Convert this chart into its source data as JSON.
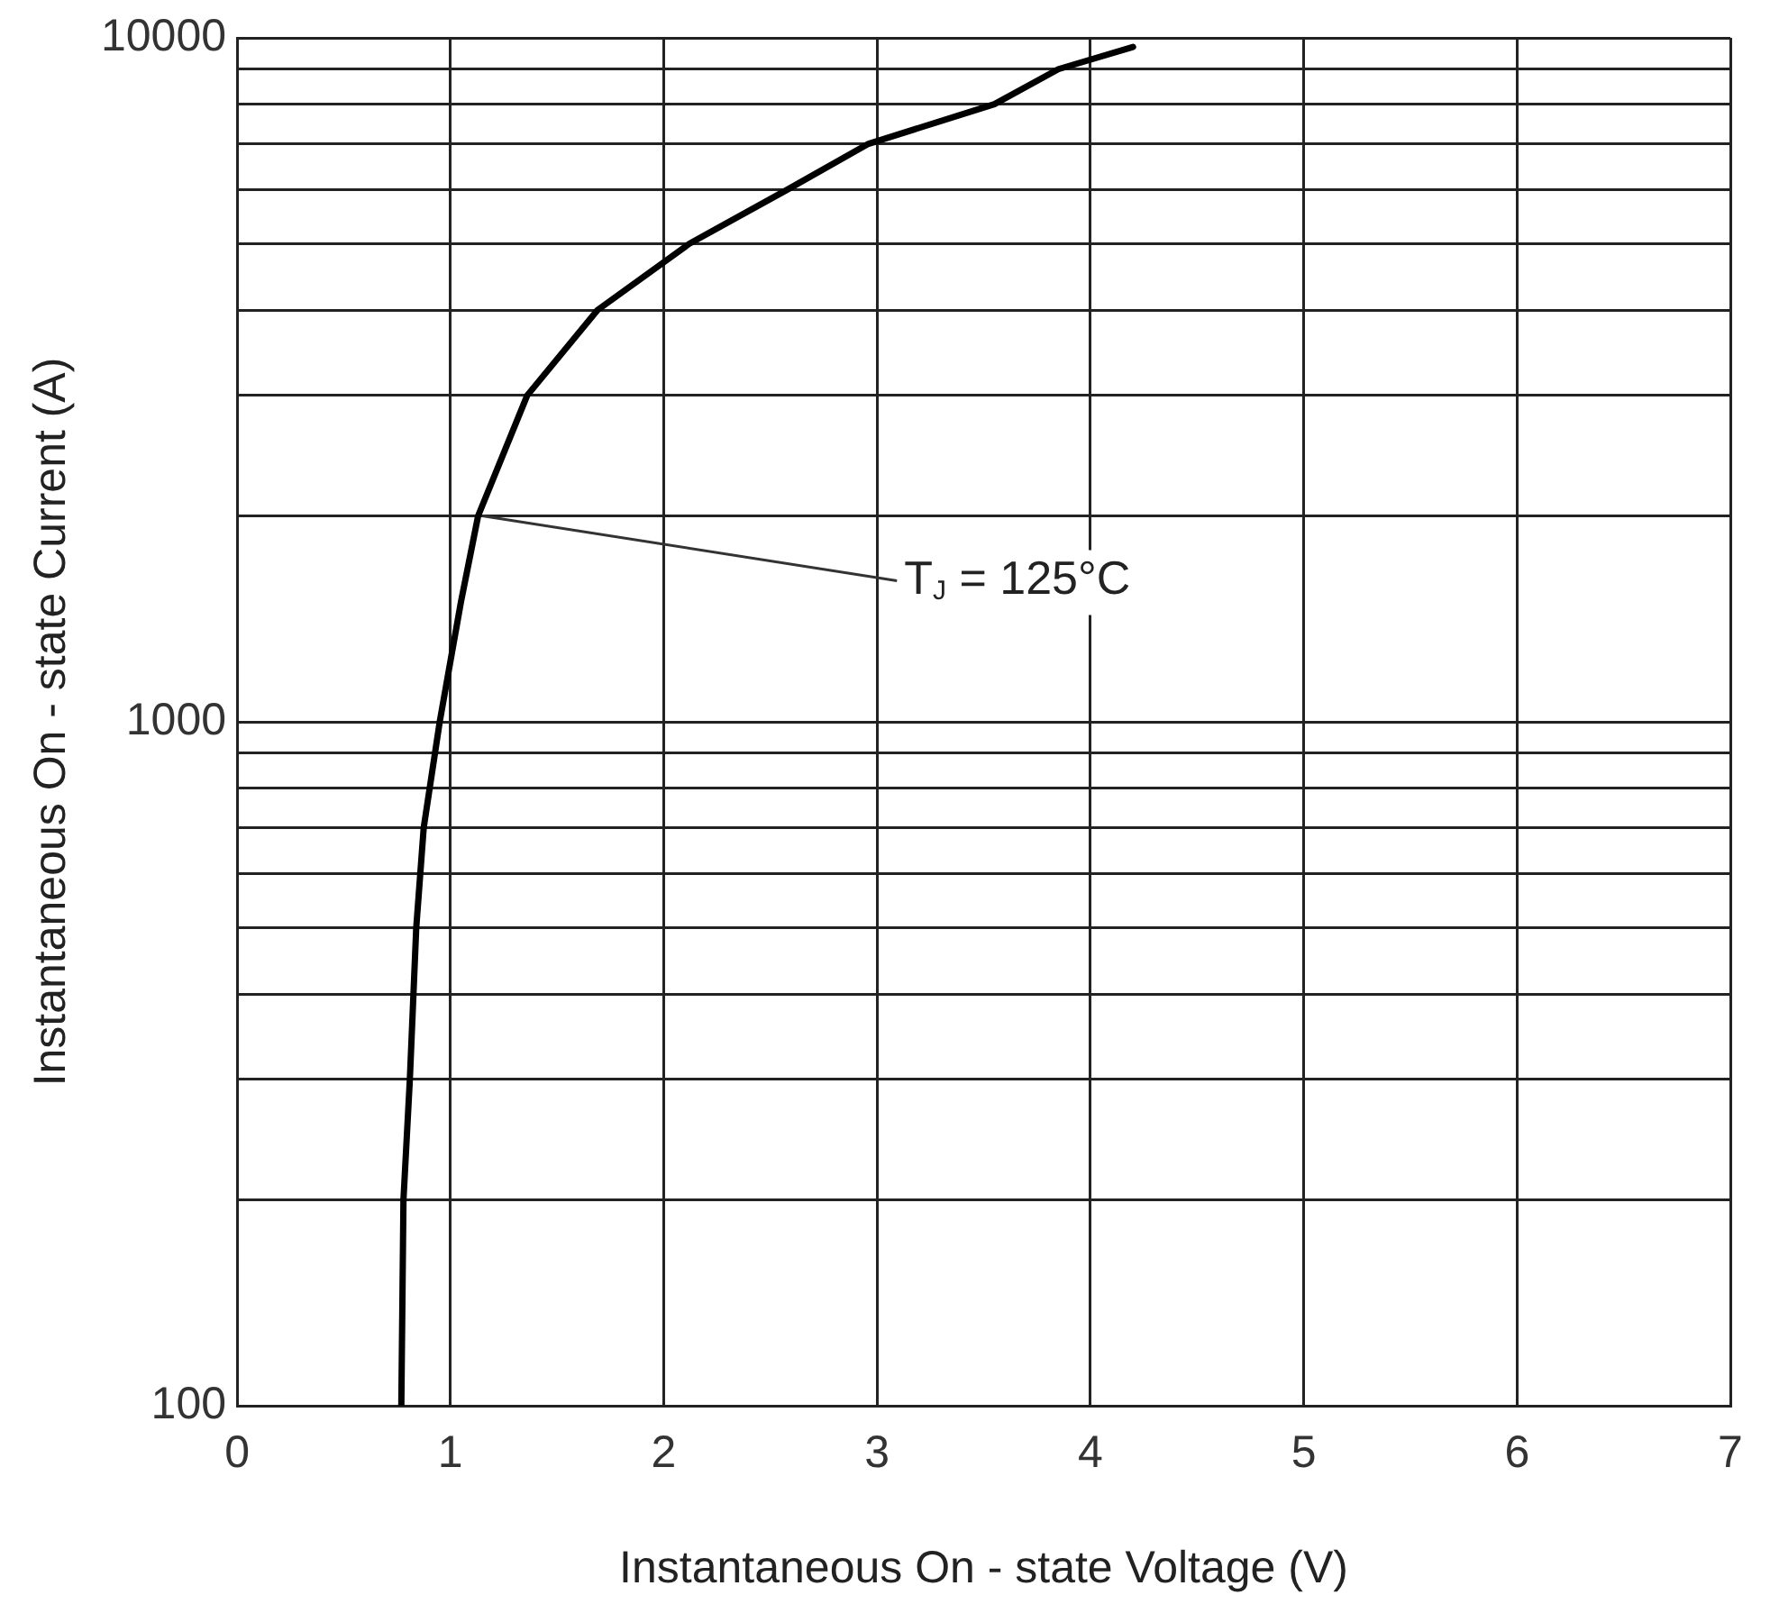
{
  "chart_data": {
    "type": "line",
    "xlabel": "Instantaneous On - state Voltage (V)",
    "ylabel": "Instantaneous On - state Current (A)",
    "x": [
      0.77,
      0.78,
      0.81,
      0.84,
      0.875,
      0.95,
      1.05,
      1.13,
      1.36,
      1.69,
      2.12,
      2.58,
      2.96,
      3.55,
      3.85,
      4.2
    ],
    "series": [
      {
        "color": "#000000",
        "values": [
          100,
          200,
          300,
          500,
          700,
          1000,
          1500,
          2000,
          3000,
          4000,
          5000,
          6000,
          7000,
          8000,
          9000,
          9700
        ]
      }
    ],
    "xlim": [
      0,
      7
    ],
    "xticks": [
      0,
      1,
      2,
      3,
      4,
      5,
      6,
      7
    ],
    "ylim": [
      100,
      10000
    ],
    "log": "y",
    "yticks": [
      100,
      {
        "value": 200,
        "label": null
      },
      {
        "value": 300,
        "label": null
      },
      {
        "value": 400,
        "label": null
      },
      {
        "value": 500,
        "label": null
      },
      {
        "value": 600,
        "label": null
      },
      {
        "value": 700,
        "label": null
      },
      {
        "value": 800,
        "label": null
      },
      {
        "value": 900,
        "label": null
      },
      1000,
      {
        "value": 2000,
        "label": null
      },
      {
        "value": 3000,
        "label": null
      },
      {
        "value": 4000,
        "label": null
      },
      {
        "value": 5000,
        "label": null
      },
      {
        "value": 6000,
        "label": null
      },
      {
        "value": 7000,
        "label": null
      },
      {
        "value": 8000,
        "label": null
      },
      {
        "value": 9000,
        "label": null
      },
      10000
    ],
    "grid": true,
    "legend": false,
    "marker": "none",
    "line_style": "solid",
    "annotations": [
      {
        "text": "T$_{J}$ = 125°C",
        "x": 1.15,
        "y": 2000
      }
    ]
  }
}
